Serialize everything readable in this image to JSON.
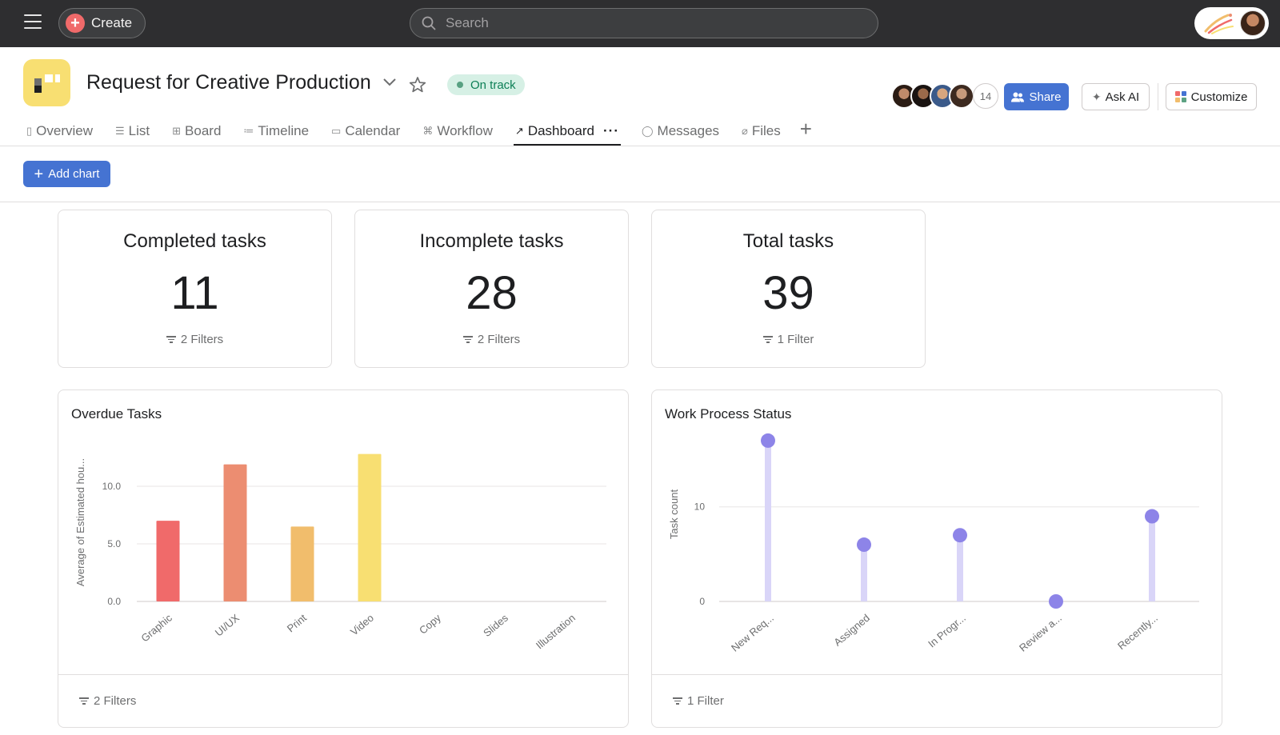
{
  "topbar": {
    "create_label": "Create",
    "search_placeholder": "Search"
  },
  "project": {
    "title": "Request for Creative Production",
    "status": "On track",
    "member_count": "14",
    "share_label": "Share",
    "ask_ai_label": "Ask AI",
    "customize_label": "Customize",
    "icon_color": "#f8df72"
  },
  "tabs": [
    {
      "label": "Overview",
      "icon": "overview-icon"
    },
    {
      "label": "List",
      "icon": "list-icon"
    },
    {
      "label": "Board",
      "icon": "board-icon"
    },
    {
      "label": "Timeline",
      "icon": "timeline-icon"
    },
    {
      "label": "Calendar",
      "icon": "calendar-icon"
    },
    {
      "label": "Workflow",
      "icon": "workflow-icon"
    },
    {
      "label": "Dashboard",
      "icon": "dashboard-icon",
      "active": true
    },
    {
      "label": "Messages",
      "icon": "messages-icon"
    },
    {
      "label": "Files",
      "icon": "files-icon"
    }
  ],
  "toolbar": {
    "add_chart_label": "Add chart"
  },
  "stats": [
    {
      "title": "Completed tasks",
      "value": "11",
      "filter": "2 Filters"
    },
    {
      "title": "Incomplete tasks",
      "value": "28",
      "filter": "2 Filters"
    },
    {
      "title": "Total tasks",
      "value": "39",
      "filter": "1 Filter"
    }
  ],
  "charts": {
    "overdue": {
      "title": "Overdue Tasks",
      "filter": "2 Filters"
    },
    "work": {
      "title": "Work Process Status",
      "filter": "1 Filter"
    }
  },
  "colors": {
    "accent": "#4573d2",
    "status_green": "#0d7f56",
    "lollipop": "#8d84e8",
    "lollipop_stem": "#d9d5f8"
  },
  "chart_data": [
    {
      "type": "bar",
      "title": "Overdue Tasks",
      "ylabel": "Average of Estimated hou...",
      "categories": [
        "Graphic",
        "UI/UX",
        "Print",
        "Video",
        "Copy",
        "Slides",
        "Illustration"
      ],
      "values": [
        7.0,
        11.9,
        6.5,
        12.8,
        0,
        0,
        0
      ],
      "colors": [
        "#f06a6a",
        "#ec8d71",
        "#f1bd6c",
        "#f8df72",
        "#f8df72",
        "#f8df72",
        "#f8df72"
      ],
      "yticks": [
        "0.0",
        "5.0",
        "10.0"
      ],
      "ylim": [
        0,
        14.3
      ],
      "grid": true
    },
    {
      "type": "lollipop",
      "title": "Work Process Status",
      "ylabel": "Task count",
      "categories": [
        "New Req...",
        "Assigned",
        "In Progr...",
        "Review a...",
        "Recently..."
      ],
      "values": [
        17,
        6,
        7,
        0,
        9
      ],
      "yticks": [
        "0",
        "10"
      ],
      "ylim": [
        0,
        17.5
      ],
      "grid": true
    }
  ]
}
